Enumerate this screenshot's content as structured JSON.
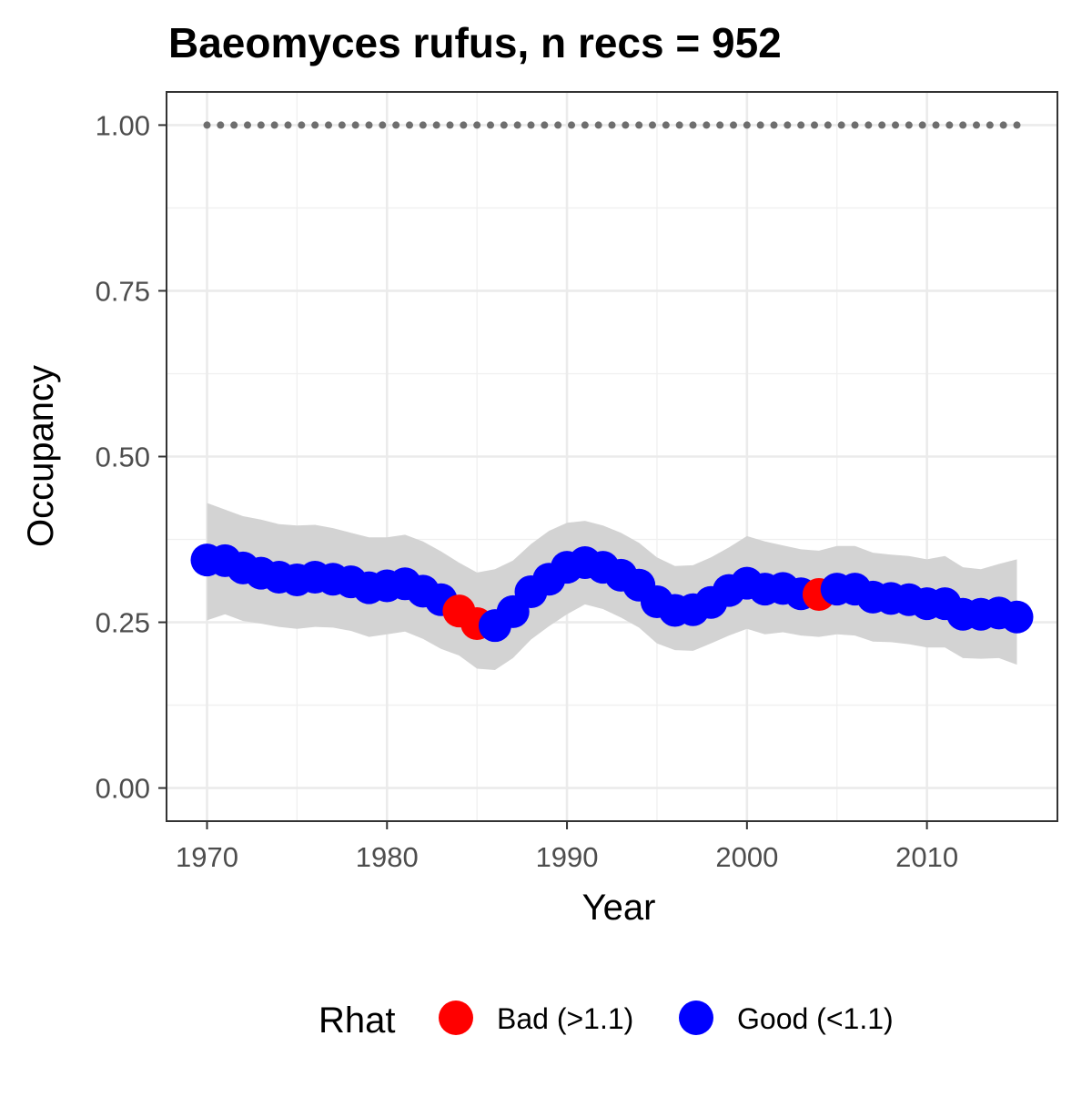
{
  "chart_data": {
    "type": "line",
    "title": "Baeomyces rufus, n recs = 952",
    "xlabel": "Year",
    "ylabel": "Occupancy",
    "xlim": [
      1967.75,
      2017.25
    ],
    "ylim": [
      -0.05,
      1.05
    ],
    "x_ticks": [
      1970,
      1980,
      1990,
      2000,
      2010
    ],
    "x_tick_labels": [
      "1970",
      "1980",
      "1990",
      "2000",
      "2010"
    ],
    "y_ticks": [
      0,
      0.25,
      0.5,
      0.75,
      1.0
    ],
    "y_tick_labels": [
      "0.00",
      "0.25",
      "0.50",
      "0.75",
      "1.00"
    ],
    "grid": true,
    "years": [
      1970,
      1971,
      1972,
      1973,
      1974,
      1975,
      1976,
      1977,
      1978,
      1979,
      1980,
      1981,
      1982,
      1983,
      1984,
      1985,
      1986,
      1987,
      1988,
      1989,
      1990,
      1991,
      1992,
      1993,
      1994,
      1995,
      1996,
      1997,
      1998,
      1999,
      2000,
      2001,
      2002,
      2003,
      2004,
      2005,
      2006,
      2007,
      2008,
      2009,
      2010,
      2011,
      2012,
      2013,
      2014,
      2015
    ],
    "occupancy_mean": [
      0.344,
      0.343,
      0.332,
      0.324,
      0.318,
      0.314,
      0.318,
      0.315,
      0.311,
      0.302,
      0.305,
      0.308,
      0.297,
      0.284,
      0.267,
      0.248,
      0.245,
      0.266,
      0.296,
      0.315,
      0.333,
      0.34,
      0.333,
      0.321,
      0.306,
      0.281,
      0.268,
      0.269,
      0.28,
      0.298,
      0.309,
      0.3,
      0.301,
      0.293,
      0.292,
      0.3,
      0.3,
      0.288,
      0.286,
      0.284,
      0.278,
      0.278,
      0.262,
      0.262,
      0.264,
      0.258
    ],
    "ci_upper": [
      0.43,
      0.42,
      0.41,
      0.405,
      0.398,
      0.396,
      0.397,
      0.392,
      0.385,
      0.378,
      0.378,
      0.382,
      0.372,
      0.357,
      0.34,
      0.325,
      0.33,
      0.343,
      0.368,
      0.388,
      0.4,
      0.403,
      0.396,
      0.385,
      0.37,
      0.348,
      0.335,
      0.336,
      0.348,
      0.363,
      0.38,
      0.372,
      0.366,
      0.36,
      0.358,
      0.365,
      0.365,
      0.355,
      0.352,
      0.35,
      0.345,
      0.35,
      0.333,
      0.33,
      0.338,
      0.345
    ],
    "ci_lower": [
      0.253,
      0.262,
      0.252,
      0.248,
      0.243,
      0.24,
      0.243,
      0.242,
      0.237,
      0.228,
      0.232,
      0.236,
      0.225,
      0.21,
      0.2,
      0.18,
      0.178,
      0.196,
      0.224,
      0.244,
      0.262,
      0.277,
      0.27,
      0.257,
      0.242,
      0.218,
      0.208,
      0.207,
      0.218,
      0.23,
      0.24,
      0.232,
      0.235,
      0.23,
      0.228,
      0.232,
      0.23,
      0.221,
      0.22,
      0.217,
      0.212,
      0.212,
      0.196,
      0.195,
      0.196,
      0.186
    ],
    "rhat_status": [
      "Good",
      "Good",
      "Good",
      "Good",
      "Good",
      "Good",
      "Good",
      "Good",
      "Good",
      "Good",
      "Good",
      "Good",
      "Good",
      "Good",
      "Bad",
      "Bad",
      "Good",
      "Good",
      "Good",
      "Good",
      "Good",
      "Good",
      "Good",
      "Good",
      "Good",
      "Good",
      "Good",
      "Good",
      "Good",
      "Good",
      "Good",
      "Good",
      "Good",
      "Good",
      "Bad",
      "Good",
      "Good",
      "Good",
      "Good",
      "Good",
      "Good",
      "Good",
      "Good",
      "Good",
      "Good",
      "Good"
    ],
    "reference_line": {
      "y": 1.0,
      "style": "dotted",
      "color": "#6e6e6e"
    },
    "ribbon_color": "#d3d3d3",
    "legend": {
      "title": "Rhat",
      "placement": "bottom",
      "entries": [
        {
          "key": "Bad",
          "label": "Bad (>1.1)",
          "color": "#ff0000"
        },
        {
          "key": "Good",
          "label": "Good (<1.1)",
          "color": "#0000ff"
        }
      ]
    }
  }
}
